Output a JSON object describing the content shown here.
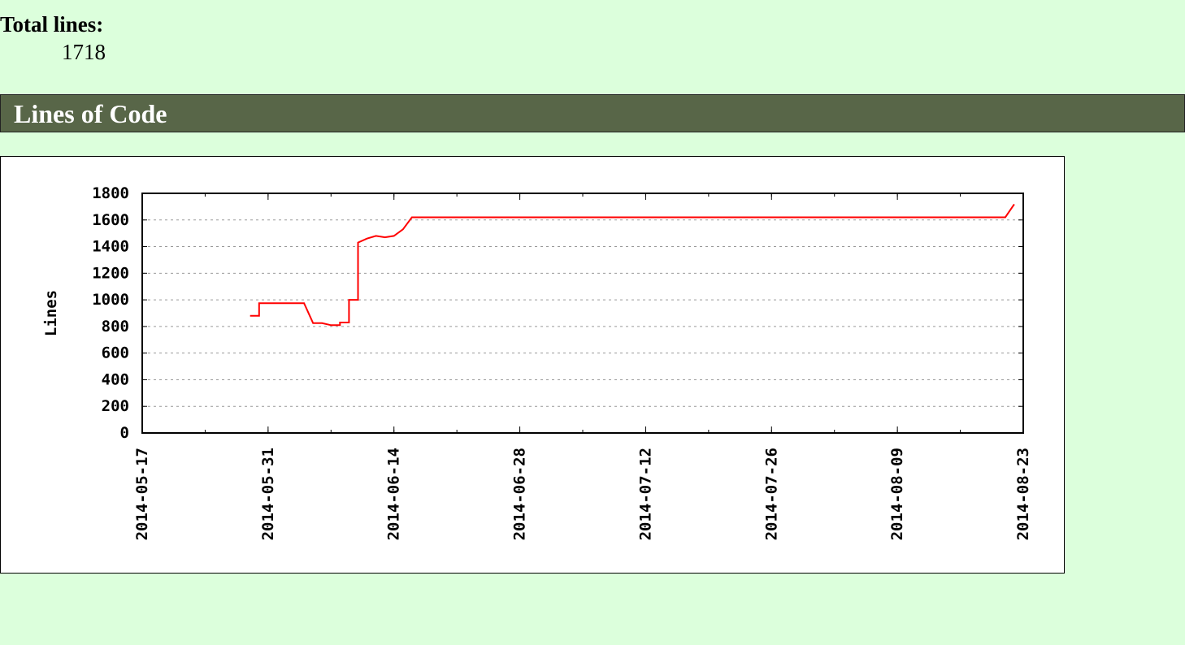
{
  "summary": {
    "total_label": "Total lines:",
    "total_value": "1718"
  },
  "section": {
    "title": "Lines of Code"
  },
  "chart_data": {
    "type": "line",
    "title": "",
    "xlabel": "",
    "ylabel": "Lines",
    "ylim": [
      0,
      1800
    ],
    "yticks": [
      0,
      200,
      400,
      600,
      800,
      1000,
      1200,
      1400,
      1600,
      1800
    ],
    "xlim": [
      "2014-05-17",
      "2014-08-23"
    ],
    "xticks": [
      "2014-05-17",
      "2014-05-31",
      "2014-06-14",
      "2014-06-28",
      "2014-07-12",
      "2014-07-26",
      "2014-08-09",
      "2014-08-23"
    ],
    "grid": true,
    "line_color": "#ff0000",
    "series": [
      {
        "x": [
          "2014-05-29",
          "2014-05-30",
          "2014-05-30",
          "2014-06-04",
          "2014-06-05",
          "2014-06-06",
          "2014-06-07",
          "2014-06-08",
          "2014-06-08",
          "2014-06-09",
          "2014-06-09",
          "2014-06-10",
          "2014-06-10",
          "2014-06-11",
          "2014-06-12",
          "2014-06-13",
          "2014-06-14",
          "2014-06-15",
          "2014-06-16",
          "2014-08-21",
          "2014-08-22"
        ],
        "y": [
          880,
          880,
          975,
          975,
          825,
          825,
          810,
          810,
          830,
          830,
          1000,
          1000,
          1430,
          1460,
          1480,
          1470,
          1480,
          1530,
          1620,
          1620,
          1718
        ]
      }
    ]
  }
}
